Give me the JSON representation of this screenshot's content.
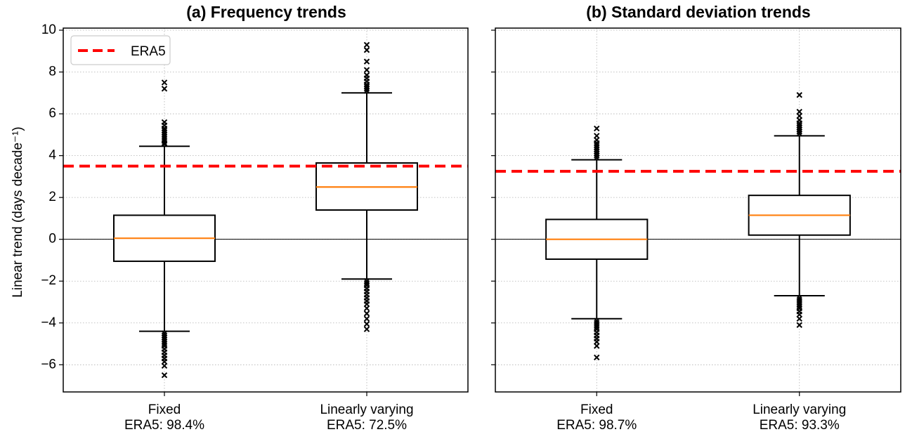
{
  "chart_data": [
    {
      "type": "box",
      "title": "(a) Frequency trends",
      "ylabel": "Linear trend (days decade⁻¹)",
      "ylim": [
        -7.3,
        10.1
      ],
      "yticks": [
        -6,
        -4,
        -2,
        0,
        2,
        4,
        6,
        8,
        10
      ],
      "grid": true,
      "legend": {
        "placement": "top-left",
        "entries": [
          "ERA5"
        ]
      },
      "reference_line": {
        "name": "ERA5",
        "value": 3.5,
        "color": "#ff0000",
        "style": "dashed"
      },
      "zero_line": 0,
      "categories": [
        "Fixed\nERA5: 98.4%",
        "Linearly varying\nERA5: 72.5%"
      ],
      "boxes": [
        {
          "whisker_low": -4.4,
          "q1": -1.05,
          "median": 0.05,
          "q3": 1.15,
          "whisker_high": 4.45,
          "outliers": [
            4.55,
            4.6,
            4.7,
            4.8,
            4.9,
            5.0,
            5.1,
            5.2,
            5.3,
            5.45,
            5.6,
            7.2,
            7.5,
            -4.5,
            -4.6,
            -4.7,
            -4.8,
            -4.9,
            -5.0,
            -5.1,
            -5.25,
            -5.4,
            -5.55,
            -5.7,
            -5.85,
            -6.05,
            -6.5
          ]
        },
        {
          "whisker_low": -1.9,
          "q1": 1.4,
          "median": 2.5,
          "q3": 3.65,
          "whisker_high": 7.0,
          "outliers": [
            7.1,
            7.2,
            7.3,
            7.4,
            7.55,
            7.7,
            7.85,
            8.1,
            8.5,
            9.05,
            9.3,
            -2.0,
            -2.1,
            -2.2,
            -2.35,
            -2.5,
            -2.65,
            -2.8,
            -2.95,
            -3.1,
            -3.3,
            -3.55,
            -3.8,
            -4.05,
            -4.3
          ]
        }
      ]
    },
    {
      "type": "box",
      "title": "(b) Standard deviation trends",
      "ylim": [
        -7.3,
        10.1
      ],
      "yticks": [
        -6,
        -4,
        -2,
        0,
        2,
        4,
        6,
        8,
        10
      ],
      "grid": true,
      "reference_line": {
        "name": "ERA5",
        "value": 3.25,
        "color": "#ff0000",
        "style": "dashed"
      },
      "zero_line": 0,
      "categories": [
        "Fixed\nERA5: 98.7%",
        "Linearly varying\nERA5: 93.3%"
      ],
      "boxes": [
        {
          "whisker_low": -3.8,
          "q1": -0.95,
          "median": 0.0,
          "q3": 0.95,
          "whisker_high": 3.8,
          "outliers": [
            3.9,
            4.0,
            4.1,
            4.2,
            4.3,
            4.4,
            4.5,
            4.6,
            4.75,
            4.95,
            5.3,
            -3.9,
            -4.0,
            -4.1,
            -4.2,
            -4.3,
            -4.45,
            -4.6,
            -4.75,
            -4.9,
            -5.1,
            -5.65
          ]
        },
        {
          "whisker_low": -2.7,
          "q1": 0.2,
          "median": 1.15,
          "q3": 2.1,
          "whisker_high": 4.95,
          "outliers": [
            5.05,
            5.15,
            5.25,
            5.35,
            5.45,
            5.55,
            5.7,
            5.9,
            6.1,
            6.9,
            -2.8,
            -2.9,
            -3.0,
            -3.1,
            -3.2,
            -3.3,
            -3.45,
            -3.6,
            -3.8,
            -4.1
          ]
        }
      ]
    }
  ],
  "colors": {
    "median": "#ff7f0e",
    "reference": "#ff0000",
    "box": "#000000",
    "grid": "#b0b0b0"
  }
}
